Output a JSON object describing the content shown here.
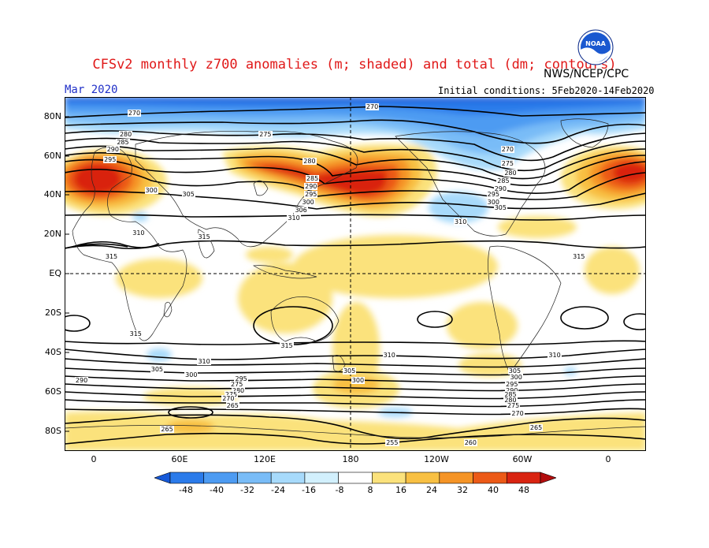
{
  "header": {
    "title": "CFSv2 monthly z700 anomalies (m; shaded) and total (dm; contours)",
    "agency": "NWS/NCEP/CPC",
    "logo_text": "NOAA",
    "month": "Mar 2020",
    "initial_conditions": "Initial conditions: 5Feb2020-14Feb2020"
  },
  "axes": {
    "lat_labels": [
      "80N",
      "60N",
      "40N",
      "20N",
      "EQ",
      "20S",
      "40S",
      "60S",
      "80S"
    ],
    "lon_labels": [
      "0",
      "60E",
      "120E",
      "180",
      "120W",
      "60W",
      "0"
    ]
  },
  "colorbar": {
    "levels": [
      "-48",
      "-40",
      "-32",
      "-24",
      "-16",
      "-8",
      "8",
      "16",
      "24",
      "32",
      "40",
      "48"
    ],
    "colors": [
      "#1659d8",
      "#2b7bea",
      "#4d9bf2",
      "#79bcf7",
      "#a7dafb",
      "#d2f0fd",
      "#ffffff",
      "#fbe27c",
      "#f8c043",
      "#f59426",
      "#ec5a17",
      "#d92411",
      "#b30d0d"
    ]
  },
  "contour_labels": [
    {
      "text": "270",
      "lon": 28,
      "lat": 82
    },
    {
      "text": "270",
      "lon": 195,
      "lat": 85
    },
    {
      "text": "275",
      "lon": 120,
      "lat": 71
    },
    {
      "text": "270",
      "lon": 290,
      "lat": 63
    },
    {
      "text": "275",
      "lon": 290,
      "lat": 56
    },
    {
      "text": "280",
      "lon": 22,
      "lat": 71
    },
    {
      "text": "285",
      "lon": 20,
      "lat": 67
    },
    {
      "text": "290",
      "lon": 13,
      "lat": 63
    },
    {
      "text": "295",
      "lon": 11,
      "lat": 58
    },
    {
      "text": "300",
      "lon": 40,
      "lat": 42
    },
    {
      "text": "305",
      "lon": 66,
      "lat": 40
    },
    {
      "text": "280",
      "lon": 151,
      "lat": 57
    },
    {
      "text": "285",
      "lon": 153,
      "lat": 48
    },
    {
      "text": "290",
      "lon": 152,
      "lat": 44
    },
    {
      "text": "295",
      "lon": 152,
      "lat": 40
    },
    {
      "text": "300",
      "lon": 150,
      "lat": 36
    },
    {
      "text": "306",
      "lon": 145,
      "lat": 32
    },
    {
      "text": "310",
      "lon": 140,
      "lat": 28
    },
    {
      "text": "280",
      "lon": 292,
      "lat": 51
    },
    {
      "text": "285",
      "lon": 287,
      "lat": 47
    },
    {
      "text": "290",
      "lon": 285,
      "lat": 43
    },
    {
      "text": "295",
      "lon": 280,
      "lat": 40
    },
    {
      "text": "300",
      "lon": 280,
      "lat": 36
    },
    {
      "text": "305",
      "lon": 285,
      "lat": 33
    },
    {
      "text": "310",
      "lon": 257,
      "lat": 26
    },
    {
      "text": "310",
      "lon": 31,
      "lat": 20
    },
    {
      "text": "315",
      "lon": 77,
      "lat": 18
    },
    {
      "text": "315",
      "lon": 12,
      "lat": 8
    },
    {
      "text": "315",
      "lon": 340,
      "lat": 8
    },
    {
      "text": "315",
      "lon": 29,
      "lat": -32
    },
    {
      "text": "315",
      "lon": 135,
      "lat": -38
    },
    {
      "text": "310",
      "lon": 77,
      "lat": -46
    },
    {
      "text": "305",
      "lon": 44,
      "lat": -50
    },
    {
      "text": "300",
      "lon": 68,
      "lat": -53
    },
    {
      "text": "290",
      "lon": -9,
      "lat": -56
    },
    {
      "text": "295",
      "lon": 103,
      "lat": -55
    },
    {
      "text": "275",
      "lon": 100,
      "lat": -58
    },
    {
      "text": "280",
      "lon": 101,
      "lat": -61
    },
    {
      "text": "275",
      "lon": 96,
      "lat": -63
    },
    {
      "text": "270",
      "lon": 94,
      "lat": -65
    },
    {
      "text": "265",
      "lon": 97,
      "lat": -69
    },
    {
      "text": "310",
      "lon": 207,
      "lat": -43
    },
    {
      "text": "305",
      "lon": 179,
      "lat": -51
    },
    {
      "text": "300",
      "lon": 185,
      "lat": -56
    },
    {
      "text": "310",
      "lon": 323,
      "lat": -43
    },
    {
      "text": "305",
      "lon": 295,
      "lat": -51
    },
    {
      "text": "300",
      "lon": 296,
      "lat": -54
    },
    {
      "text": "295",
      "lon": 293,
      "lat": -58
    },
    {
      "text": "290",
      "lon": 293,
      "lat": -61
    },
    {
      "text": "285",
      "lon": 292,
      "lat": -63
    },
    {
      "text": "280",
      "lon": 292,
      "lat": -66
    },
    {
      "text": "275",
      "lon": 294,
      "lat": -69
    },
    {
      "text": "270",
      "lon": 297,
      "lat": -73
    },
    {
      "text": "265",
      "lon": 310,
      "lat": -80
    },
    {
      "text": "265",
      "lon": 51,
      "lat": -81
    },
    {
      "text": "255",
      "lon": 209,
      "lat": -88
    },
    {
      "text": "260",
      "lon": 264,
      "lat": -88
    },
    {
      "text": "260",
      "lon": 276,
      "lat": -96
    },
    {
      "text": "265",
      "lon": 63,
      "lat": -96
    }
  ]
}
